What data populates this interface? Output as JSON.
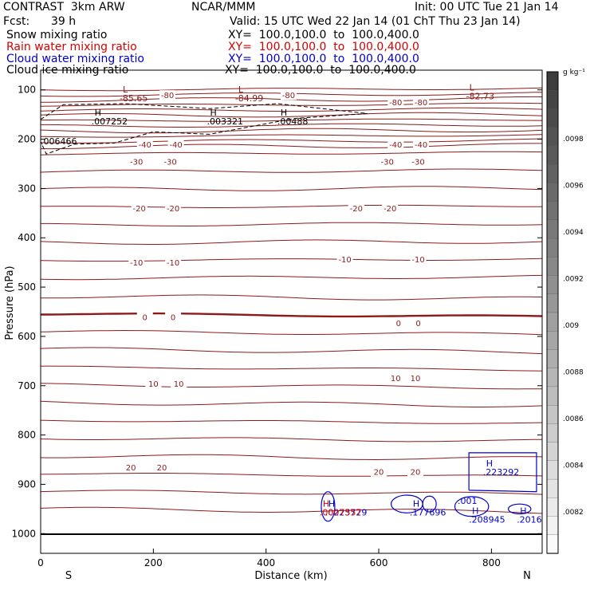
{
  "header": {
    "run": "CONTRAST  3km ARW",
    "org": "NCAR/MMM",
    "init": "Init: 00 UTC Tue 21 Jan 14",
    "fcst_label": "Fcst:",
    "fcst_value": "39 h",
    "valid": "Valid: 15 UTC Wed 22 Jan 14 (01 ChT Thu 23 Jan 14)"
  },
  "fields": [
    {
      "name": "Snow mixing ratio",
      "xy": "XY=  100.0,100.0  to  100.0,400.0",
      "color": "#000000"
    },
    {
      "name": "Rain water mixing ratio",
      "xy": "XY=  100.0,100.0  to  100.0,400.0",
      "color": "#d40000"
    },
    {
      "name": "Cloud water mixing ratio",
      "xy": "XY=  100.0,100.0  to  100.0,400.0",
      "color": "#0000cc"
    },
    {
      "name": "Cloud ice mixing ratio",
      "xy": "XY=  100.0,100.0  to  100.0,400.0",
      "color": "#000000"
    }
  ],
  "chart_data": {
    "type": "contour cross-section",
    "xlabel": "Distance (km)",
    "ylabel": "Pressure (hPa)",
    "x_ticks": [
      0,
      200,
      400,
      600,
      800
    ],
    "x_range": [
      0,
      890
    ],
    "y_ticks": [
      100,
      200,
      300,
      400,
      500,
      600,
      700,
      800,
      900,
      1000
    ],
    "y_range": [
      60,
      1040
    ],
    "orientation_left": "S",
    "orientation_right": "N",
    "colorbar": {
      "unit": "g kg⁻¹",
      "ticks": [
        ".0098",
        ".0096",
        ".0094",
        ".0092",
        ".009",
        ".0088",
        ".0086",
        ".0084",
        ".0082"
      ]
    },
    "temperature_contours": [
      {
        "label": "-80",
        "p": 110
      },
      {
        "label": "-40",
        "p": 230
      },
      {
        "label": "-30",
        "p": 291
      },
      {
        "label": "-20",
        "p": 346
      },
      {
        "label": "-10",
        "p": 453
      },
      {
        "label": "0",
        "p": 561
      },
      {
        "label": "10",
        "p": 706
      },
      {
        "label": "20",
        "p": 832
      }
    ],
    "temperature_labels": [
      {
        "text": "-80",
        "x": 225,
        "p": 112
      },
      {
        "text": "-80",
        "x": 440,
        "p": 112
      },
      {
        "text": "-80",
        "x": 630,
        "p": 126
      },
      {
        "text": "-80",
        "x": 675,
        "p": 126
      },
      {
        "text": "-40",
        "x": 185,
        "p": 212
      },
      {
        "text": "-40",
        "x": 240,
        "p": 212
      },
      {
        "text": "-40",
        "x": 630,
        "p": 212
      },
      {
        "text": "-40",
        "x": 675,
        "p": 212
      },
      {
        "text": "-30",
        "x": 170,
        "p": 247
      },
      {
        "text": "-30",
        "x": 230,
        "p": 247
      },
      {
        "text": "-30",
        "x": 615,
        "p": 247
      },
      {
        "text": "-30",
        "x": 670,
        "p": 247
      },
      {
        "text": "-20",
        "x": 175,
        "p": 341
      },
      {
        "text": "-20",
        "x": 235,
        "p": 341
      },
      {
        "text": "-20",
        "x": 560,
        "p": 341
      },
      {
        "text": "-20",
        "x": 620,
        "p": 341
      },
      {
        "text": "-10",
        "x": 170,
        "p": 451
      },
      {
        "text": "-10",
        "x": 235,
        "p": 451
      },
      {
        "text": "-10",
        "x": 540,
        "p": 445
      },
      {
        "text": "-10",
        "x": 670,
        "p": 445
      },
      {
        "text": "0",
        "x": 185,
        "p": 562
      },
      {
        "text": "0",
        "x": 235,
        "p": 562
      },
      {
        "text": "0",
        "x": 635,
        "p": 574
      },
      {
        "text": "0",
        "x": 670,
        "p": 574
      },
      {
        "text": "10",
        "x": 200,
        "p": 697
      },
      {
        "text": "10",
        "x": 245,
        "p": 697
      },
      {
        "text": "10",
        "x": 630,
        "p": 686
      },
      {
        "text": "10",
        "x": 665,
        "p": 686
      },
      {
        "text": "20",
        "x": 160,
        "p": 867
      },
      {
        "text": "20",
        "x": 215,
        "p": 867
      },
      {
        "text": "20",
        "x": 600,
        "p": 876
      },
      {
        "text": "20",
        "x": 665,
        "p": 876
      }
    ],
    "extrema_labels": [
      {
        "type": "L",
        "value": "-85.65",
        "x": 140,
        "p": 105,
        "color": "#8b1a1a"
      },
      {
        "type": "L",
        "value": "-84.99",
        "x": 345,
        "p": 105,
        "color": "#8b1a1a"
      },
      {
        "type": "L",
        "value": "-82.73",
        "x": 755,
        "p": 101,
        "color": "#8b1a1a"
      },
      {
        "type": "H",
        "value": ".007252",
        "x": 90,
        "p": 152,
        "color": "#000000"
      },
      {
        "type": "H",
        "value": ".003321",
        "x": 295,
        "p": 152,
        "color": "#000000"
      },
      {
        "type": "H",
        "value": ".00488",
        "x": 420,
        "p": 152,
        "color": "#000000"
      },
      {
        "type": "",
        "value": ".006466",
        "x": 0,
        "p": 193,
        "color": "#000000"
      },
      {
        "type": "H",
        "value": ".223292",
        "x": 785,
        "p": 864,
        "color": "#0000cc"
      },
      {
        "type": "H",
        "value": ".177696",
        "x": 655,
        "p": 945,
        "color": "#0000cc"
      },
      {
        "type": "H",
        "value": ".208945",
        "x": 760,
        "p": 960,
        "color": "#0000cc"
      },
      {
        "type": "H",
        "value": ".2016",
        "x": 845,
        "p": 960,
        "color": "#0000cc"
      },
      {
        "type": "H",
        "value": ".0223729",
        "x": 505,
        "p": 945,
        "color": "#0000cc"
      },
      {
        "type": "H",
        "value": ".0007557",
        "x": 495,
        "p": 945,
        "color": "#d40000"
      },
      {
        "type": "",
        "value": ".001",
        "x": 740,
        "p": 922,
        "color": "#0000cc"
      }
    ]
  },
  "colors": {
    "temperature": "#8b1a1a",
    "snow": "#000000",
    "rain": "#d40000",
    "cloud_water": "#0000cc"
  }
}
